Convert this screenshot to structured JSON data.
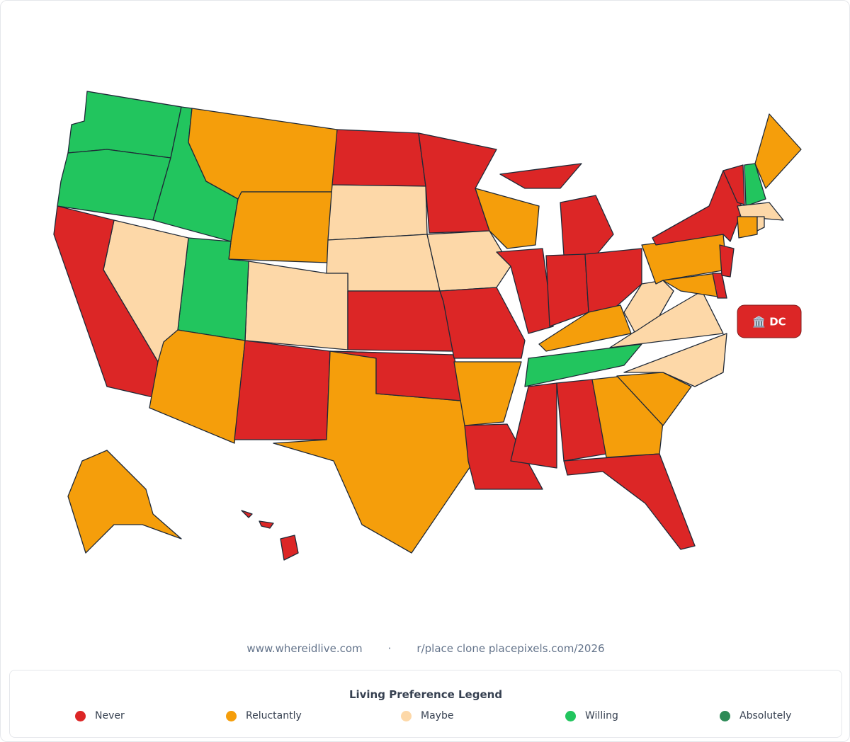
{
  "map": {
    "dc_badge": "🏛️ DC"
  },
  "footer": {
    "site": "www.whereidlive.com",
    "separator": "·",
    "credit": "r/place clone placepixels.com/2026"
  },
  "legend": {
    "title": "Living Preference Legend",
    "items": [
      {
        "label": "Never",
        "color": "#dc2626"
      },
      {
        "label": "Reluctantly",
        "color": "#f59e0b"
      },
      {
        "label": "Maybe",
        "color": "#fdd8a8"
      },
      {
        "label": "Willing",
        "color": "#22c55e"
      },
      {
        "label": "Absolutely",
        "color": "#2e8b57"
      }
    ]
  }
}
